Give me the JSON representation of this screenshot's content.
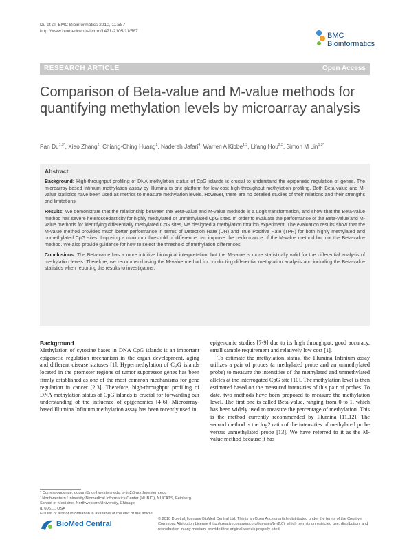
{
  "citation": {
    "line1": "Du et al. BMC Bioinformatics 2010, 11:587",
    "line2": "http://www.biomedcentral.com/1471-2105/11/587"
  },
  "journal_logo": {
    "line1": "BMC",
    "line2": "Bioinformatics"
  },
  "banner": {
    "type": "RESEARCH ARTICLE",
    "access": "Open Access"
  },
  "title": "Comparison of Beta-value and M-value methods for quantifying methylation levels by microarray analysis",
  "authors": [
    {
      "name": "Pan Du",
      "sup": "1,3*"
    },
    {
      "name": "Xiao Zhang",
      "sup": "2"
    },
    {
      "name": "Chiang-Ching Huang",
      "sup": "2"
    },
    {
      "name": "Nadereh Jafari",
      "sup": "4"
    },
    {
      "name": "Warren A Kibbe",
      "sup": "1,3"
    },
    {
      "name": "Lifang Hou",
      "sup": "2,3"
    },
    {
      "name": "Simon M Lin",
      "sup": "1,3*"
    }
  ],
  "abstract": {
    "heading": "Abstract",
    "background_label": "Background:",
    "background": "High-throughput profiling of DNA methylation status of CpG islands is crucial to understand the epigenetic regulation of genes. The microarray-based Infinium methylation assay by Illumina is one platform for low-cost high-throughput methylation profiling. Both Beta-value and M-value statistics have been used as metrics to measure methylation levels. However, there are no detailed studies of their relations and their strengths and limitations.",
    "results_label": "Results:",
    "results": "We demonstrate that the relationship between the Beta-value and M-value methods is a Logit transformation, and show that the Beta-value method has severe heteroscedasticity for highly methylated or unmethylated CpG sites. In order to evaluate the performance of the Beta-value and M-value methods for identifying differentially methylated CpG sites, we designed a methylation titration experiment. The evaluation results show that the M-value method provides much better performance in terms of Detection Rate (DR) and True Positive Rate (TPR) for both highly methylated and unmethylated CpG sites. Imposing a minimum threshold of difference can improve the performance of the M-value method but not the Beta-value method. We also provide guidance for how to select the threshold of methylation differences.",
    "conclusions_label": "Conclusions:",
    "conclusions": "The Beta-value has a more intuitive biological interpretation, but the M-value is more statistically valid for the differential analysis of methylation levels. Therefore, we recommend using the M-value method for conducting differential methylation analysis and including the Beta-value statistics when reporting the results to investigators."
  },
  "body": {
    "left_heading": "Background",
    "left_p1": "Methylation of cytosine bases in DNA CpG islands is an important epigenetic regulation mechanism in the organ development, aging and different disease statuses [1]. Hypermethylation of CpG islands located in the promoter regions of tumor suppressor genes has been firmly established as one of the most common mechanisms for gene regulation in cancer [2,3]. Therefore, high-throughput profiling of DNA methylation status of CpG islands is crucial for forwarding our understanding of the influence of epigenomics [4-6]. Microarray-based Illumina Infinium methylation assay has been recently used in",
    "right_p1": "epigenomic studies [7-9] due to its high throughput, good accuracy, small sample requirement and relatively low cost [1].",
    "right_p2": "To estimate the methylation status, the Illumina Infinium assay utilizes a pair of probes (a methylated probe and an unmethylated probe) to measure the intensities of the methylated and unmethylated alleles at the interrogated CpG site [10]. The methylation level is then estimated based on the measured intensities of this pair of probes. To date, two methods have been proposed to measure the methylation level. The first one is called Beta-value, ranging from 0 to 1, which has been widely used to measure the percentage of methylation. This is the method currently recommended by Illumina [11,12]. The second method is the log2 ratio of the intensities of methylated probe versus unmethylated probe [13]. We have referred to it as the M-value method because it has"
  },
  "footnotes": {
    "line1": "* Correspondence: dupan@northwestern.edu; s-lin2@northwestern.edu",
    "line2": "1Northwestern University Biomedical Informatics Center (NUBIC), NUCATS, Feinberg School of Medicine, Northwestern University, Chicago,",
    "line3": "IL 60611, USA",
    "line4": "Full list of author information is available at the end of the article"
  },
  "publisher_logo": "BioMed Central",
  "license": "© 2010 Du et al; licensee BioMed Central Ltd. This is an Open Access article distributed under the terms of the Creative Commons Attribution License (http://creativecommons.org/licenses/by/2.0), which permits unrestricted use, distribution, and reproduction in any medium, provided the original work is properly cited.",
  "colors": {
    "banner": "#c8c8c8",
    "abstract_bg": "#efefef",
    "bmc_blue": "#1d6db3"
  }
}
